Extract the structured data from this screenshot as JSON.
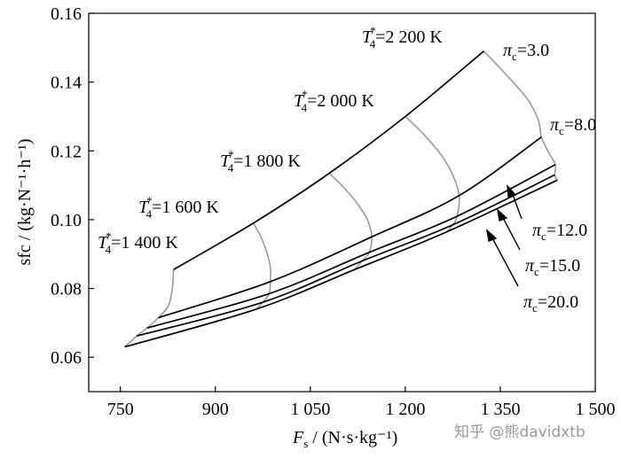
{
  "chart_data": {
    "type": "line",
    "ylabel": "sfc / (kg·N⁻¹·h⁻¹)",
    "xlabel_main": "F",
    "xlabel_sub": "s",
    "xlabel_unit": " / (N·s·kg⁻¹)",
    "xlim": [
      700,
      1500
    ],
    "ylim": [
      0.05,
      0.16
    ],
    "x_ticks": [
      {
        "value": 750,
        "label": "750"
      },
      {
        "value": 900,
        "label": "900"
      },
      {
        "value": 1050,
        "label": "1 050"
      },
      {
        "value": 1200,
        "label": "1 200"
      },
      {
        "value": 1350,
        "label": "1 350"
      },
      {
        "value": 1500,
        "label": "1 500"
      }
    ],
    "y_ticks": [
      {
        "value": 0.06,
        "label": "0.06"
      },
      {
        "value": 0.08,
        "label": "0.08"
      },
      {
        "value": 0.1,
        "label": "0.10"
      },
      {
        "value": 0.12,
        "label": "0.12"
      },
      {
        "value": 0.14,
        "label": "0.14"
      },
      {
        "value": 0.16,
        "label": "0.16"
      }
    ],
    "pressure_ratio_series": [
      {
        "label": "πc=3.0",
        "pi": "3.0",
        "points": [
          [
            834,
            0.0855
          ],
          [
            960,
            0.099
          ],
          [
            1080,
            0.1135
          ],
          [
            1200,
            0.13
          ],
          [
            1324,
            0.149
          ]
        ]
      },
      {
        "label": "πc=8.0",
        "pi": "8.0",
        "points": [
          [
            810,
            0.0715
          ],
          [
            987,
            0.082
          ],
          [
            1147,
            0.095
          ],
          [
            1285,
            0.107
          ],
          [
            1415,
            0.124
          ]
        ]
      },
      {
        "label": "πc=12.0",
        "pi": "12.0",
        "points": [
          [
            792,
            0.0685
          ],
          [
            985,
            0.0785
          ],
          [
            1143,
            0.0905
          ],
          [
            1282,
            0.101
          ],
          [
            1437,
            0.116
          ]
        ]
      },
      {
        "label": "πc=15.0",
        "pi": "15.0",
        "points": [
          [
            776,
            0.0662
          ],
          [
            975,
            0.076
          ],
          [
            1132,
            0.088
          ],
          [
            1275,
            0.0985
          ],
          [
            1436,
            0.113
          ]
        ]
      },
      {
        "label": "πc=20.0",
        "pi": "20.0",
        "points": [
          [
            757,
            0.063
          ],
          [
            965,
            0.074
          ],
          [
            1120,
            0.0855
          ],
          [
            1266,
            0.0965
          ],
          [
            1440,
            0.1115
          ]
        ]
      }
    ],
    "temperature_series": [
      {
        "label": "T4*=1 400 K",
        "temp": "=1 400 K",
        "points": [
          [
            834,
            0.0855
          ],
          [
            832,
            0.08
          ],
          [
            826,
            0.075
          ],
          [
            810,
            0.0715
          ],
          [
            792,
            0.0685
          ],
          [
            776,
            0.0662
          ],
          [
            757,
            0.063
          ]
        ]
      },
      {
        "label": "T4*=1 600 K",
        "temp": "=1 600 K",
        "points": [
          [
            960,
            0.099
          ],
          [
            972,
            0.095
          ],
          [
            982,
            0.09
          ],
          [
            987,
            0.086
          ],
          [
            987,
            0.082
          ],
          [
            985,
            0.0785
          ],
          [
            975,
            0.076
          ],
          [
            965,
            0.074
          ]
        ]
      },
      {
        "label": "T4*=1 800 K",
        "temp": "=1 800 K",
        "points": [
          [
            1080,
            0.1135
          ],
          [
            1102,
            0.1095
          ],
          [
            1123,
            0.105
          ],
          [
            1140,
            0.1
          ],
          [
            1147,
            0.095
          ],
          [
            1143,
            0.0905
          ],
          [
            1132,
            0.088
          ],
          [
            1120,
            0.0855
          ]
        ]
      },
      {
        "label": "T4*=2 000 K",
        "temp": "=2 000 K",
        "points": [
          [
            1200,
            0.13
          ],
          [
            1228,
            0.125
          ],
          [
            1256,
            0.119
          ],
          [
            1275,
            0.113
          ],
          [
            1285,
            0.107
          ],
          [
            1282,
            0.101
          ],
          [
            1275,
            0.0985
          ],
          [
            1266,
            0.0965
          ]
        ]
      },
      {
        "label": "T4*=2 200 K",
        "temp": "=2 200 K",
        "points": [
          [
            1324,
            0.149
          ],
          [
            1360,
            0.142
          ],
          [
            1393,
            0.135
          ],
          [
            1410,
            0.129
          ],
          [
            1415,
            0.124
          ],
          [
            1425,
            0.12
          ],
          [
            1437,
            0.116
          ],
          [
            1436,
            0.113
          ],
          [
            1440,
            0.1115
          ]
        ]
      }
    ],
    "temperature_labels": [
      {
        "main": "T",
        "sub": "4",
        "sup": "*",
        "text": "=1 400 K"
      },
      {
        "main": "T",
        "sub": "4",
        "sup": "*",
        "text": "=1 600 K"
      },
      {
        "main": "T",
        "sub": "4",
        "sup": "*",
        "text": "=1 800 K"
      },
      {
        "main": "T",
        "sub": "4",
        "sup": "*",
        "text": "=2 000 K"
      },
      {
        "main": "T",
        "sub": "4",
        "sup": "*",
        "text": "=2 200 K"
      }
    ],
    "pressure_labels": [
      {
        "main": "π",
        "sub": "c",
        "text": "=3.0"
      },
      {
        "main": "π",
        "sub": "c",
        "text": "=8.0"
      },
      {
        "main": "π",
        "sub": "c",
        "text": "=12.0"
      },
      {
        "main": "π",
        "sub": "c",
        "text": "=15.0"
      },
      {
        "main": "π",
        "sub": "c",
        "text": "=20.0"
      }
    ],
    "line_colors": {
      "pressure": "#000000",
      "temperature": "#999999"
    },
    "grid": false
  },
  "watermark": "知乎 @熊davidxtb"
}
